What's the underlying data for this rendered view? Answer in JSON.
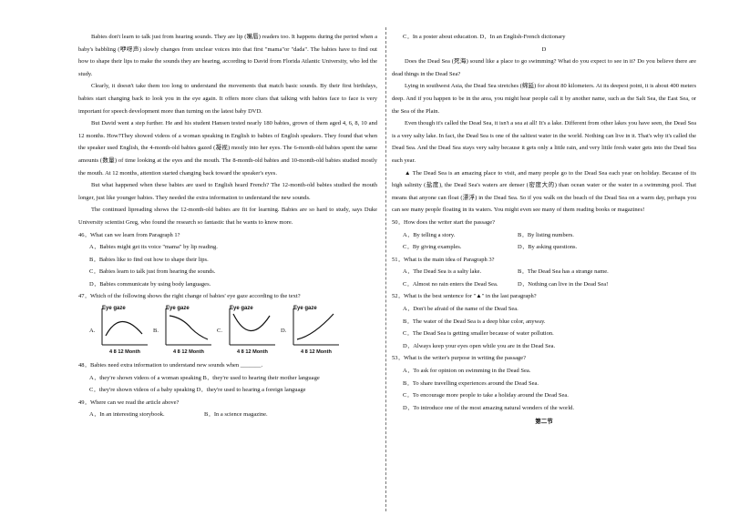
{
  "left": {
    "paragraphs": [
      "Babies don't learn to talk just from hearing sounds. They are lip (嘴唇) readers too. It happens during the period when a baby's babbling (咿呀声) slowly changes from unclear voices into that first \"mama\"or \"dada\". The babies have to find out how to shape their lips to make the sounds they are hearing, according to David from Florida Atlantic University, who led the study.",
      "Clearly, it doesn't take them too long to understand the movements that match basic sounds. By their first birthdays, babies start changing back to look you in the eye again. It offers more clues that talking with babies face to face is very important for speech development more than turning on the latest baby DVD.",
      "But David went a step further. He and his student Hansen tested nearly 180 babies, grown of them aged 4, 6, 8, 10 and 12 months. How?They showed videos of a woman speaking in English to babies of English speakers. They found that when the speaker used English, the 4-month-old babies gazed (凝视) mostly into her eyes. The 6-month-old babies spent the same amounts (数量) of time looking at the eyes and the mouth. The 8-month-old babies and 10-month-old babies studied mostly the mouth. At 12 months, attention started changing back toward the speaker's eyes.",
      "But what happened when these babies are used to English heard French? The 12-month-old babies studied the mouth longer, just like younger babies. They needed the extra information to understand the new sounds.",
      "The continued lipreading shows the 12-month-old babies are fit for learning. Babies are so hard to study, says Duke University scientist Greg, who found the research so fantastic that he wants to know more."
    ],
    "q46": {
      "stem": "46．What can we learn from Paragraph 1?",
      "options": [
        "A．Babies might get its voice \"mama\" by lip reading.",
        "B．Babies like to find out how to shape their lips.",
        "C．Babies learn to talk just from hearing the sounds.",
        "D．Babies communicate by using body languages."
      ]
    },
    "q47": {
      "stem": "47．Which of the following shows the right change of babies' eye gaze according to the text?",
      "charts": [
        {
          "label": "A.",
          "ylabel": "Eye gaze",
          "xlabel": "4   8  12 Month",
          "shape": "arch"
        },
        {
          "label": "B.",
          "ylabel": "Eye gaze",
          "xlabel": "4   8  12 Month",
          "shape": "fall"
        },
        {
          "label": "C.",
          "ylabel": "Eye gaze",
          "xlabel": "4   8  12 Month",
          "shape": "valley"
        },
        {
          "label": "D.",
          "ylabel": "Eye gaze",
          "xlabel": "4   8  12 Month",
          "shape": "rise"
        }
      ]
    },
    "q48": {
      "stem": "48．Babies need extra information to understand new sounds when _______.",
      "options": [
        "A．they're shown videos of a woman speaking    B．they're used to hearing their mother language",
        "C．they're shown videos of a baby speaking D．they're used to hearing a foreign language"
      ]
    },
    "q49": {
      "stem": "49．Where can we read the article above?",
      "opt_a": "A．In an interesting storybook.",
      "opt_b": "B．In a science magazine."
    }
  },
  "right": {
    "q49_cont": "C．In a poster about education.    D．In an English-French dictionary",
    "section_letter": "D",
    "paragraphs": [
      "Does the Dead Sea (死海) sound like a place to go swimming? What do you expect to see in it? Do you believe there are dead things in the Dead Sea?",
      "Lying in southwest Asia, the Dead Sea stretches (绵延) for about 80 kilometers. At its deepest point, it is about 400 meters deep. And if you happen to be in the area, you might hear people call it by another name, such as the Salt Sea, the East Sea, or the Sea of the Plain.",
      "Even though it's called the Dead Sea, it isn't a sea at all! It's a lake. Different from other lakes you have seen, the Dead Sea is a very salty lake. In fact, the Dead Sea is one of the saltiest water in the world. Nothing can live in it. That's why it's called the Dead Sea. And the Dead Sea stays very salty because it gets only a little rain, and very little fresh water gets into the Dead Sea each year."
    ],
    "blank_mark": "▲",
    "blank_para": " The Dead Sea is an amazing place to visit, and many people go to the Dead Sea each year on holiday. Because of its high salinity (盐度), the Dead Sea's waters are denser (密度大的) than ocean water or the water in a swimming pool. That means that anyone can float (漂浮) in the Dead Sea. So if you walk on the beach of the Dead Sea on a warm day, perhaps you can see many people floating in its waters. You might even see many of them reading books or magazines!",
    "q50": {
      "stem": "50．How does the writer start the passage?",
      "options": [
        "A．By telling a story.",
        "B．By listing numbers.",
        "C．By giving examples.",
        "D．By asking questions."
      ]
    },
    "q51": {
      "stem": "51．What is the main idea of Paragraph 3?",
      "options": [
        "A．The Dead Sea is a salty lake.",
        "B．The Dead Sea has a strange name.",
        "C．Almost no rain enters the Dead Sea.",
        "D．Nothing can live in the Dead Sea!"
      ]
    },
    "q52": {
      "stem_pre": "52．What is the best sentence for \"",
      "stem_mark": "▲",
      "stem_post": "\" in the last paragraph?",
      "options": [
        "A．Don't be afraid of the name of the Dead Sea.",
        "B．The water of the Dead Sea is a deep blue color, anyway.",
        "C．The Dead Sea is getting smaller because of water pollution.",
        "D．Always keep your eyes open while you are in the Dead Sea."
      ]
    },
    "q53": {
      "stem": "53．What is the writer's purpose in writing the passage?",
      "options": [
        "A．To ask for opinion on swimming in the Dead Sea.",
        "B．To share travelling experiences around the Dead Sea.",
        "C．To encourage more people to take a holiday around the Dead Sea.",
        "D．To introduce one of the most amazing natural wonders of the world."
      ]
    },
    "section_heading": "第二节"
  }
}
